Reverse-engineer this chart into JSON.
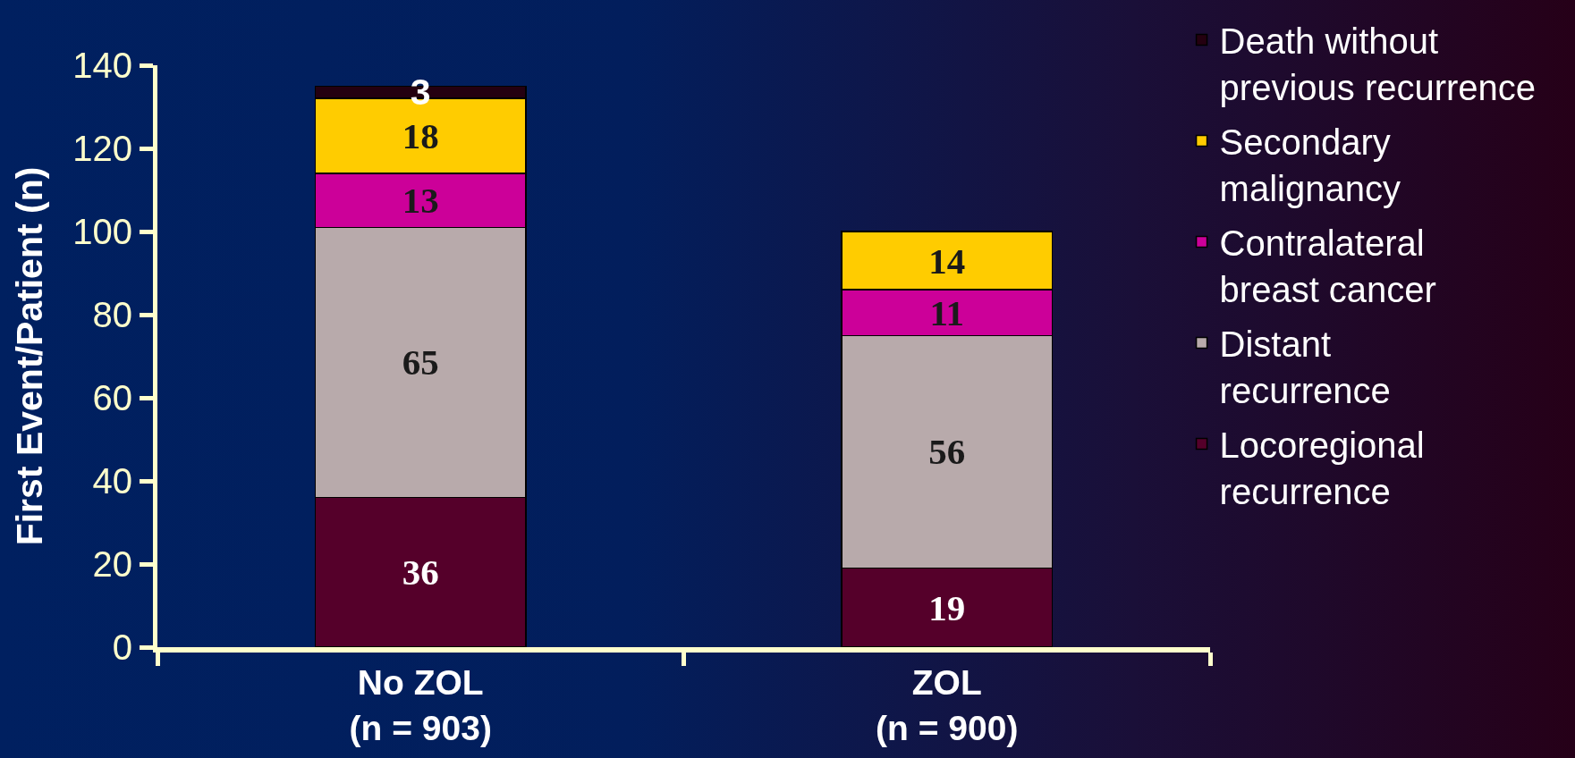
{
  "chart_data": {
    "type": "bar",
    "stacked": true,
    "categories": [
      "No ZOL\n(n = 903)",
      "ZOL\n(n = 900)"
    ],
    "ylabel": "First Event/Patient (n)",
    "series": [
      {
        "name": "Locoregional\nrecurrence",
        "color": "#55002a",
        "values": [
          36,
          19
        ]
      },
      {
        "name": "Distant\nrecurrence",
        "color": "#b8aaab",
        "values": [
          65,
          56
        ]
      },
      {
        "name": "Contralateral\nbreast cancer",
        "color": "#cc0099",
        "values": [
          13,
          11
        ]
      },
      {
        "name": "Secondary\nmalignancy",
        "color": "#ffcc00",
        "values": [
          18,
          14
        ]
      },
      {
        "name": "Death without\nprevious recurrence",
        "color": "#240010",
        "values": [
          3,
          null
        ]
      }
    ],
    "ylim": [
      0,
      140
    ],
    "yticks": [
      0,
      20,
      40,
      60,
      80,
      100,
      120,
      140
    ],
    "data_labels": true,
    "legend": "top right"
  }
}
